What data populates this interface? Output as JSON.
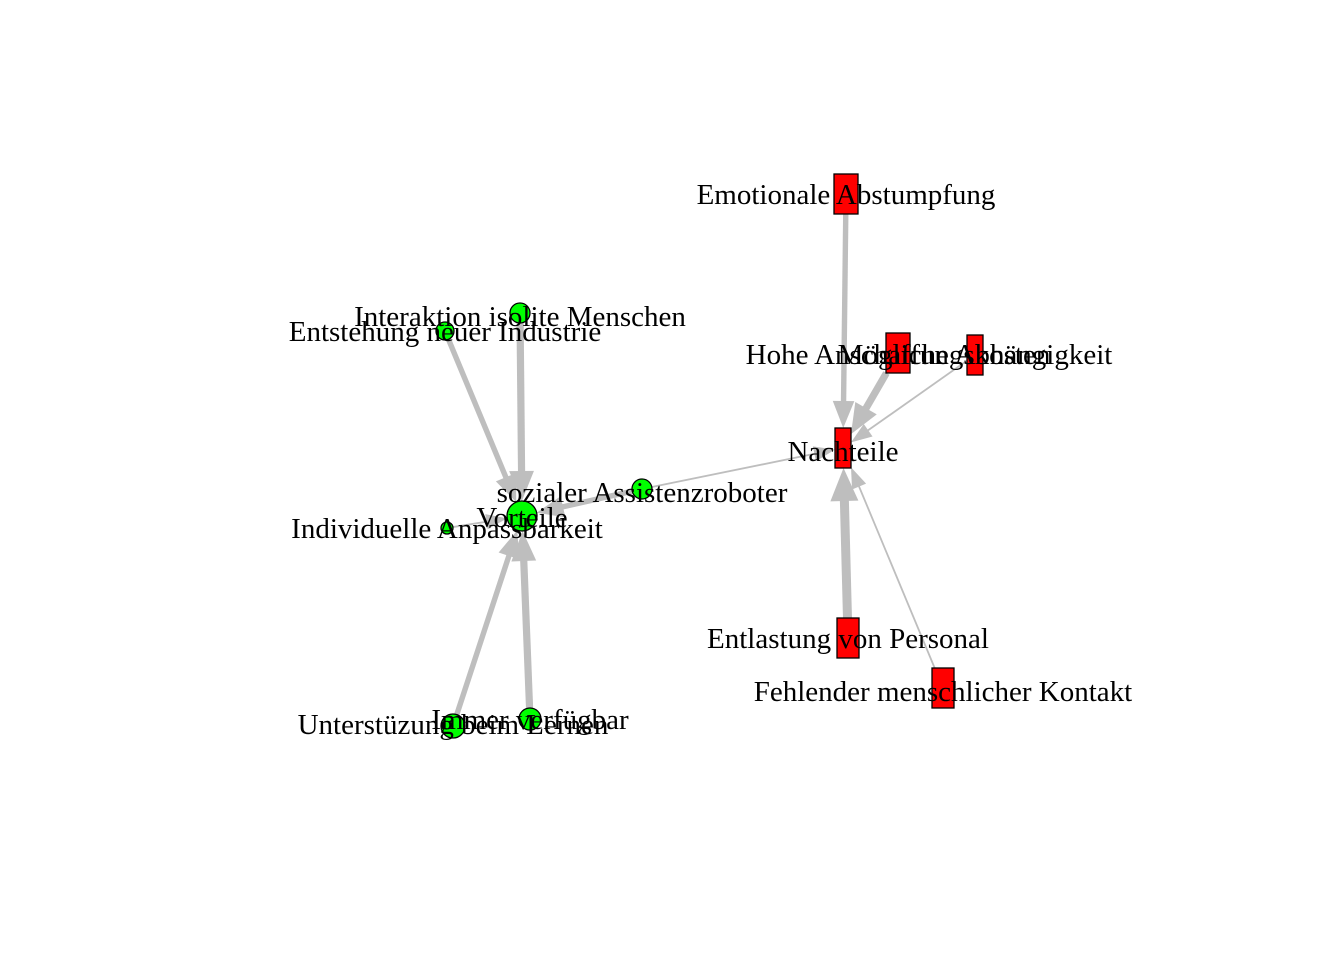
{
  "diagram": {
    "nodes": [
      {
        "id": "vorteile",
        "label": "Vorteile",
        "shape": "circle",
        "color": "#00ff00"
      },
      {
        "id": "nachteile",
        "label": "Nachteile",
        "shape": "rect",
        "color": "#ff0000"
      },
      {
        "id": "sozialer",
        "label": "sozialer Assistenzroboter",
        "shape": "circle",
        "color": "#00ff00"
      },
      {
        "id": "interaktion",
        "label": "Interaktion isolite Menschen",
        "shape": "circle",
        "color": "#00ff00"
      },
      {
        "id": "entstehung",
        "label": "Entstehung neuer Industrie",
        "shape": "circle",
        "color": "#00ff00"
      },
      {
        "id": "individuelle",
        "label": "Individuelle Anpassbarkeit",
        "shape": "circle",
        "color": "#00ff00"
      },
      {
        "id": "immer",
        "label": "Immer verfügbar",
        "shape": "circle",
        "color": "#00ff00"
      },
      {
        "id": "unterstuezung",
        "label": "Unterstüzung beim Lernen",
        "shape": "circle",
        "color": "#00ff00"
      },
      {
        "id": "emotionale",
        "label": "Emotionale Abstumpfung",
        "shape": "rect",
        "color": "#ff0000"
      },
      {
        "id": "hohe",
        "label": "Hohe Anschaffungskosten",
        "shape": "rect",
        "color": "#ff0000"
      },
      {
        "id": "moegliche",
        "label": "Mögliche Abhängigkeit",
        "shape": "rect",
        "color": "#ff0000"
      },
      {
        "id": "entlastung",
        "label": "Entlastung von Personal",
        "shape": "rect",
        "color": "#ff0000"
      },
      {
        "id": "fehlender",
        "label": "Fehlender menschlicher Kontakt",
        "shape": "rect",
        "color": "#ff0000"
      }
    ],
    "edges": [
      {
        "from": "sozialer",
        "to": "vorteile",
        "weight": 3
      },
      {
        "from": "sozialer",
        "to": "nachteile",
        "weight": 1
      },
      {
        "from": "interaktion",
        "to": "vorteile",
        "weight": 4
      },
      {
        "from": "entstehung",
        "to": "vorteile",
        "weight": 3
      },
      {
        "from": "individuelle",
        "to": "vorteile",
        "weight": 1
      },
      {
        "from": "immer",
        "to": "vorteile",
        "weight": 4
      },
      {
        "from": "unterstuezung",
        "to": "vorteile",
        "weight": 3
      },
      {
        "from": "emotionale",
        "to": "nachteile",
        "weight": 3
      },
      {
        "from": "hohe",
        "to": "nachteile",
        "weight": 4
      },
      {
        "from": "moegliche",
        "to": "nachteile",
        "weight": 1
      },
      {
        "from": "entlastung",
        "to": "nachteile",
        "weight": 5
      },
      {
        "from": "fehlender",
        "to": "nachteile",
        "weight": 1
      }
    ],
    "edge_color": "#bebebe",
    "node_border_color": "#000000"
  }
}
